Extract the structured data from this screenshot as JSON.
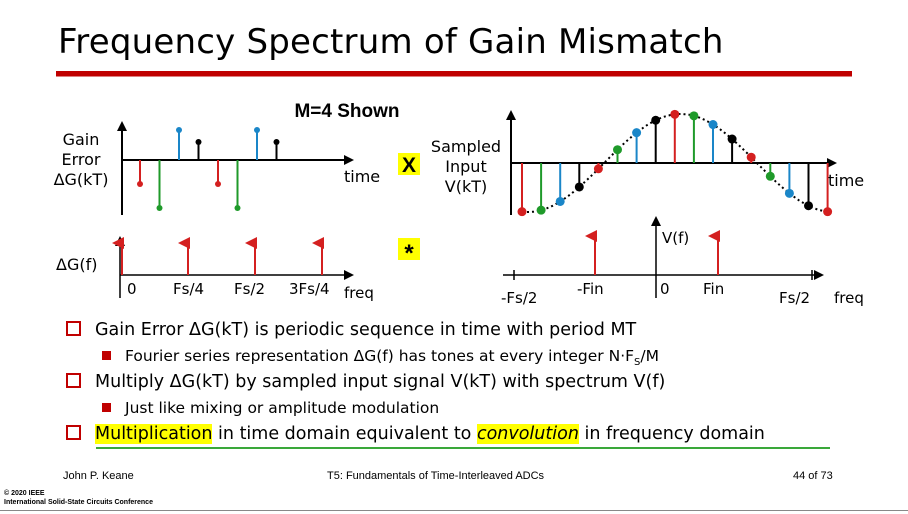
{
  "title": "Frequency Spectrum of Gain Mismatch",
  "diagram": {
    "m_label": "M=4 Shown",
    "gain_label": [
      "Gain",
      "Error",
      "ΔG(kT)"
    ],
    "time_label": "time",
    "multiply_symbol": "X",
    "sampled_label": [
      "Sampled",
      "Input",
      "V(kT)"
    ],
    "time_label_right": "time",
    "dgf_label": "ΔG(f)",
    "convolve_symbol": "*",
    "freq_ticks_left": [
      "0",
      "Fs/4",
      "Fs/2",
      "3Fs/4"
    ],
    "freq_label_left": "freq",
    "vf_label": "V(f)",
    "freq_ticks_right": [
      "-Fs/2",
      "-Fin",
      "0",
      "Fin",
      "Fs/2"
    ],
    "freq_label_right": "freq",
    "colors": {
      "red": "#d42020",
      "green": "#1f9a2a",
      "blue": "#1a86c8",
      "black": "#000000",
      "accent": "#c00000"
    }
  },
  "bullets": {
    "b1": "Gain Error ΔG(kT) is periodic sequence in time with period MT",
    "b1_sub_pre": "Fourier series representation ΔG(f) has tones at every integer N·F",
    "b1_sub_sub": "S",
    "b1_sub_post": "/M",
    "b2": "Multiply ΔG(kT) by sampled input signal V(kT) with spectrum V(f)",
    "b2_sub": "Just like mixing or amplitude modulation",
    "b3_hl1": "Multiplication",
    "b3_mid": " in time domain equivalent to ",
    "b3_hl2": "convolution",
    "b3_end": " in frequency domain"
  },
  "footer": {
    "author": "John P. Keane",
    "session": "T5: Fundamentals of Time-Interleaved ADCs",
    "page": "44 of 73",
    "copyright1": "© 2020 IEEE",
    "copyright2": "International Solid-State Circuits Conference"
  }
}
